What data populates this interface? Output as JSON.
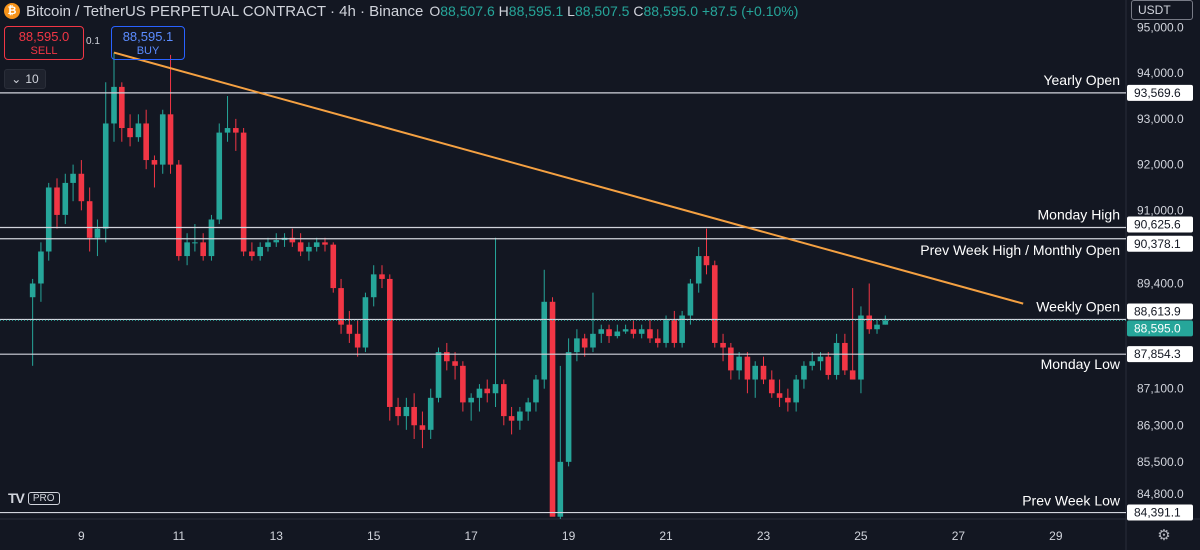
{
  "header": {
    "symbol": "Bitcoin / TetherUS PERPETUAL CONTRACT · 4h · Binance",
    "coin_icon": "bitcoin-icon",
    "open_label": "O",
    "open": "88,507.6",
    "high_label": "H",
    "high": "88,595.1",
    "low_label": "L",
    "low": "88,507.5",
    "close_label": "C",
    "close": "88,595.0",
    "change": "+87.5 (+0.10%)"
  },
  "trade": {
    "sell_price": "88,595.0",
    "sell_label": "SELL",
    "spread": "0.1",
    "buy_price": "88,595.1",
    "buy_label": "BUY"
  },
  "indicator_toggle": {
    "label": "10",
    "icon": "chevron-down-icon"
  },
  "currency": "USDT",
  "logo": {
    "pro": "PRO"
  },
  "colors": {
    "background": "#131722",
    "up": "#26a69a",
    "down": "#f23645",
    "trendline": "#f5a142",
    "level": "#d1d4dc",
    "text": "#d1d4dc",
    "grid": "#1e222d"
  },
  "chart_data": {
    "type": "candlestick",
    "ylim": [
      84250,
      95600
    ],
    "y_ticks": [
      "95,000.0",
      "94,000.0",
      "93,000.0",
      "92,000.0",
      "91,000.0",
      "89,400.0",
      "87,100.0",
      "86,300.0",
      "85,500.0",
      "84,800.0"
    ],
    "y_tick_values": [
      95000,
      94000,
      93000,
      92000,
      91000,
      89400,
      87100,
      86300,
      85500,
      84800
    ],
    "x_ticks": [
      "9",
      "11",
      "13",
      "15",
      "17",
      "19",
      "21",
      "23",
      "25",
      "27",
      "29"
    ],
    "x_tick_values": [
      9,
      11,
      13,
      15,
      17,
      19,
      21,
      23,
      25,
      27,
      29
    ],
    "levels": [
      {
        "name": "Yearly Open",
        "price": 93569.6,
        "price_label": "93,569.6"
      },
      {
        "name": "Monday High",
        "price": 90625.6,
        "price_label": "90,625.6"
      },
      {
        "name": "Prev Week High / Monthly Open",
        "price": 90378.1,
        "price_label": "90,378.1"
      },
      {
        "name": "Weekly Open",
        "price": 88613.9,
        "price_label": "88,613.9"
      },
      {
        "name": "Monday Low",
        "price": 87854.3,
        "price_label": "87,854.3"
      },
      {
        "name": "Prev Week Low",
        "price": 84391.1,
        "price_label": "84,391.1"
      }
    ],
    "current_price": {
      "price": 88595.0,
      "label": "88,595.0"
    },
    "trendline": {
      "x1": 9.67,
      "y1": 94450,
      "x2": 28.33,
      "y2": 88960
    },
    "candles": [
      [
        8.0,
        89100,
        89500,
        87600,
        89400
      ],
      [
        8.17,
        89400,
        90300,
        89000,
        90100
      ],
      [
        8.33,
        90100,
        91600,
        89900,
        91500
      ],
      [
        8.5,
        91500,
        91700,
        90600,
        90900
      ],
      [
        8.67,
        90900,
        91800,
        90700,
        91600
      ],
      [
        8.83,
        91600,
        92000,
        91200,
        91800
      ],
      [
        9.0,
        91800,
        92100,
        91000,
        91200
      ],
      [
        9.17,
        91200,
        91500,
        90100,
        90400
      ],
      [
        9.33,
        90400,
        90800,
        90000,
        90600
      ],
      [
        9.5,
        90600,
        93800,
        90300,
        92900
      ],
      [
        9.67,
        92900,
        94450,
        92500,
        93700
      ],
      [
        9.83,
        93700,
        93800,
        92500,
        92800
      ],
      [
        10.0,
        92800,
        93100,
        92400,
        92600
      ],
      [
        10.17,
        92600,
        93100,
        92500,
        92900
      ],
      [
        10.33,
        92900,
        93200,
        91900,
        92100
      ],
      [
        10.5,
        92100,
        92200,
        91500,
        92000
      ],
      [
        10.67,
        92000,
        93200,
        91800,
        93100
      ],
      [
        10.83,
        93100,
        94400,
        91800,
        92000
      ],
      [
        11.0,
        92000,
        92100,
        89900,
        90000
      ],
      [
        11.17,
        90000,
        90500,
        89800,
        90300
      ],
      [
        11.33,
        90300,
        90700,
        90100,
        90300
      ],
      [
        11.5,
        90300,
        90500,
        89900,
        90000
      ],
      [
        11.67,
        90000,
        90900,
        89900,
        90800
      ],
      [
        11.83,
        90800,
        92900,
        90700,
        92700
      ],
      [
        12.0,
        92700,
        93500,
        92500,
        92800
      ],
      [
        12.17,
        92800,
        93000,
        92300,
        92700
      ],
      [
        12.33,
        92700,
        92800,
        90000,
        90100
      ],
      [
        12.5,
        90100,
        90300,
        89900,
        90000
      ],
      [
        12.67,
        90000,
        90300,
        89900,
        90200
      ],
      [
        12.83,
        90200,
        90400,
        90100,
        90300
      ],
      [
        13.0,
        90300,
        90500,
        90200,
        90350
      ],
      [
        13.17,
        90350,
        90500,
        90200,
        90400
      ],
      [
        13.33,
        90400,
        90600,
        90200,
        90300
      ],
      [
        13.5,
        90300,
        90500,
        90000,
        90100
      ],
      [
        13.67,
        90100,
        90300,
        89900,
        90200
      ],
      [
        13.83,
        90200,
        90400,
        90100,
        90300
      ],
      [
        14.0,
        90300,
        90400,
        90100,
        90250
      ],
      [
        14.17,
        90250,
        90300,
        89200,
        89300
      ],
      [
        14.33,
        89300,
        89500,
        88300,
        88500
      ],
      [
        14.5,
        88500,
        88800,
        88100,
        88300
      ],
      [
        14.67,
        88300,
        88600,
        87800,
        88000
      ],
      [
        14.83,
        88000,
        89200,
        87900,
        89100
      ],
      [
        15.0,
        89100,
        89800,
        88900,
        89600
      ],
      [
        15.17,
        89600,
        89800,
        89300,
        89500
      ],
      [
        15.33,
        89500,
        89600,
        86400,
        86700
      ],
      [
        15.5,
        86700,
        86900,
        86300,
        86500
      ],
      [
        15.67,
        86500,
        86900,
        86200,
        86700
      ],
      [
        15.83,
        86700,
        87000,
        86000,
        86300
      ],
      [
        16.0,
        86300,
        86600,
        85800,
        86200
      ],
      [
        16.17,
        86200,
        87100,
        86000,
        86900
      ],
      [
        16.33,
        86900,
        88000,
        86800,
        87900
      ],
      [
        16.5,
        87900,
        88100,
        87500,
        87700
      ],
      [
        16.67,
        87700,
        87900,
        87300,
        87600
      ],
      [
        16.83,
        87600,
        87700,
        86600,
        86800
      ],
      [
        17.0,
        86800,
        87000,
        86400,
        86900
      ],
      [
        17.17,
        86900,
        87200,
        86600,
        87100
      ],
      [
        17.33,
        87100,
        87300,
        86800,
        87000
      ],
      [
        17.5,
        87000,
        90400,
        86700,
        87200
      ],
      [
        17.67,
        87200,
        87300,
        86300,
        86500
      ],
      [
        17.83,
        86500,
        86700,
        86100,
        86400
      ],
      [
        18.0,
        86400,
        86700,
        86200,
        86600
      ],
      [
        18.17,
        86600,
        86900,
        86400,
        86800
      ],
      [
        18.33,
        86800,
        87400,
        86600,
        87300
      ],
      [
        18.5,
        87300,
        89700,
        87100,
        89000
      ],
      [
        18.67,
        89000,
        89100,
        84391,
        84300
      ],
      [
        18.83,
        84300,
        87600,
        84250,
        85500
      ],
      [
        19.0,
        85500,
        88200,
        85400,
        87900
      ],
      [
        19.17,
        87900,
        88400,
        87700,
        88200
      ],
      [
        19.33,
        88200,
        88300,
        87800,
        88000
      ],
      [
        19.5,
        88000,
        89200,
        87900,
        88300
      ],
      [
        19.67,
        88300,
        88500,
        88100,
        88400
      ],
      [
        19.83,
        88400,
        88500,
        88100,
        88250
      ],
      [
        20.0,
        88250,
        88500,
        88200,
        88350
      ],
      [
        20.17,
        88350,
        88500,
        88300,
        88400
      ],
      [
        20.33,
        88400,
        88600,
        88200,
        88300
      ],
      [
        20.5,
        88300,
        88500,
        88200,
        88400
      ],
      [
        20.67,
        88400,
        88600,
        88100,
        88200
      ],
      [
        20.83,
        88200,
        88400,
        88000,
        88100
      ],
      [
        21.0,
        88100,
        88700,
        88000,
        88600
      ],
      [
        21.17,
        88600,
        88800,
        88000,
        88100
      ],
      [
        21.33,
        88100,
        88800,
        88000,
        88700
      ],
      [
        21.5,
        88700,
        89500,
        88500,
        89400
      ],
      [
        21.67,
        89400,
        90200,
        89200,
        90000
      ],
      [
        21.83,
        90000,
        90600,
        89600,
        89800
      ],
      [
        22.0,
        89800,
        89900,
        88000,
        88100
      ],
      [
        22.17,
        88100,
        88300,
        87700,
        88000
      ],
      [
        22.33,
        88000,
        88100,
        87300,
        87500
      ],
      [
        22.5,
        87500,
        87900,
        87300,
        87800
      ],
      [
        22.67,
        87800,
        87900,
        87000,
        87300
      ],
      [
        22.83,
        87300,
        87700,
        86900,
        87600
      ],
      [
        23.0,
        87600,
        87800,
        87200,
        87300
      ],
      [
        23.17,
        87300,
        87500,
        86900,
        87000
      ],
      [
        23.33,
        87000,
        87300,
        86700,
        86900
      ],
      [
        23.5,
        86900,
        87100,
        86600,
        86800
      ],
      [
        23.67,
        86800,
        87400,
        86600,
        87300
      ],
      [
        23.83,
        87300,
        87700,
        87100,
        87600
      ],
      [
        24.0,
        87600,
        87900,
        87500,
        87700
      ],
      [
        24.17,
        87700,
        87900,
        87500,
        87800
      ],
      [
        24.33,
        87800,
        87900,
        87300,
        87400
      ],
      [
        24.5,
        87400,
        88300,
        87300,
        88100
      ],
      [
        24.67,
        88100,
        88300,
        87400,
        87500
      ],
      [
        24.83,
        87500,
        89300,
        87400,
        87300
      ],
      [
        25.0,
        87300,
        88900,
        87000,
        88700
      ],
      [
        25.17,
        88700,
        89400,
        88300,
        88400
      ],
      [
        25.33,
        88400,
        88600,
        88300,
        88500
      ],
      [
        25.5,
        88500,
        88700,
        88500,
        88595
      ]
    ]
  }
}
